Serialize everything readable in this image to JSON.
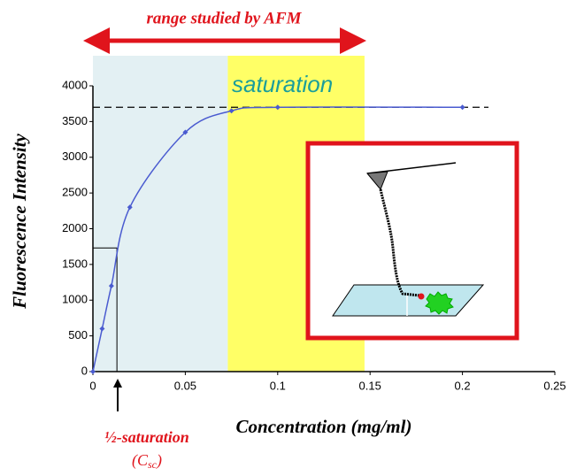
{
  "chart_data": {
    "type": "line",
    "title": "range studied by AFM",
    "annotation": "saturation",
    "x_label": "Concentration (mg/ml)",
    "y_label": "Fluorescence Intensity",
    "half_saturation": {
      "label": "½-saturation",
      "notation": [
        "(C",
        "sc",
        ")"
      ],
      "x": 0.013,
      "y": 1730
    },
    "x": [
      0,
      0.005,
      0.01,
      0.02,
      0.05,
      0.075,
      0.1,
      0.2
    ],
    "series": [
      {
        "color": "#4a5bd0",
        "values": [
          0,
          600,
          1200,
          2300,
          3350,
          3650,
          3700,
          3700
        ]
      }
    ],
    "saturation_level": 3700,
    "shaded_regions": [
      {
        "xlim": [
          0,
          0.073
        ],
        "color": "#e3f0f3"
      },
      {
        "xlim": [
          0.073,
          0.147
        ],
        "color": "#ffff66"
      }
    ],
    "xlim": [
      0,
      0.25
    ],
    "xticks": [
      0,
      0.05,
      0.1,
      0.15,
      0.2,
      0.25
    ],
    "ylim": [
      0,
      4000
    ],
    "yticks": [
      0,
      500,
      1000,
      1500,
      2000,
      2500,
      3000,
      3500,
      4000
    ]
  }
}
